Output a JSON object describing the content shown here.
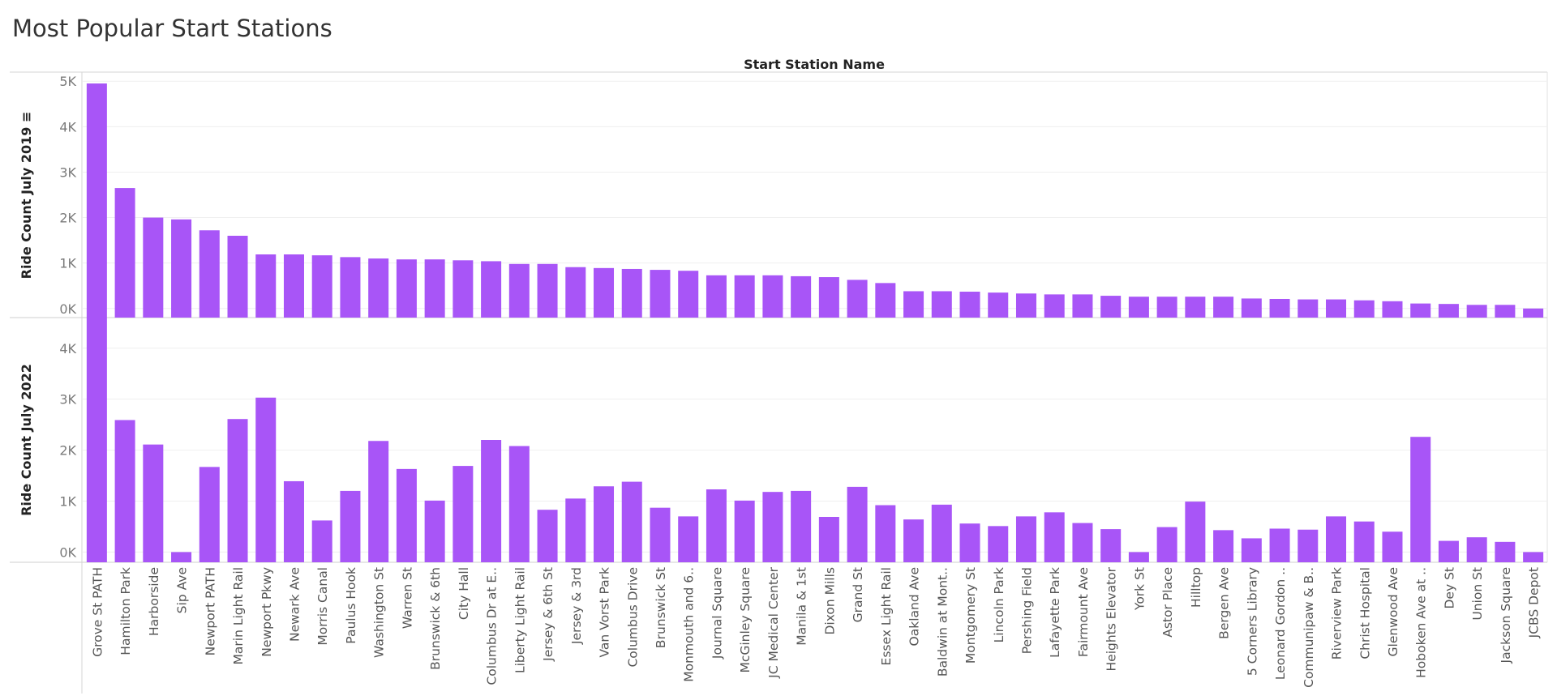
{
  "page_title": "Most Popular Start Stations",
  "chart_data": {
    "type": "bar",
    "title": "Most Popular Start Stations",
    "column_header": "Start Station Name",
    "bar_color": "#A855F7",
    "categories": [
      "Grove St PATH",
      "Hamilton Park",
      "Harborside",
      "Sip Ave",
      "Newport PATH",
      "Marin Light Rail",
      "Newport Pkwy",
      "Newark Ave",
      "Morris Canal",
      "Paulus Hook",
      "Washington St",
      "Warren St",
      "Brunswick & 6th",
      "City Hall",
      "Columbus Dr at E..",
      "Liberty Light Rail",
      "Jersey & 6th St",
      "Jersey & 3rd",
      "Van Vorst Park",
      "Columbus Drive",
      "Brunswick St",
      "Monmouth and 6..",
      "Journal Square",
      "McGinley Square",
      "JC Medical Center",
      "Manila & 1st",
      "Dixon Mills",
      "Grand St",
      "Essex Light Rail",
      "Oakland Ave",
      "Baldwin at Mont..",
      "Montgomery St",
      "Lincoln Park",
      "Pershing Field",
      "Lafayette Park",
      "Fairmount Ave",
      "Heights Elevator",
      "York St",
      "Astor Place",
      "Hilltop",
      "Bergen Ave",
      "5 Corners Library",
      "Leonard Gordon ..",
      "Communipaw & B..",
      "Riverview Park",
      "Christ Hospital",
      "Glenwood Ave",
      "Hoboken Ave at ..",
      "Dey St",
      "Union St",
      "Jackson Square",
      "JCBS Depot"
    ],
    "series": [
      {
        "name": "Ride Count July 2019 ≡",
        "ylim": [
          -200,
          5200
        ],
        "ticks": [
          0,
          1000,
          2000,
          3000,
          4000,
          5000
        ],
        "tick_labels": [
          "0K",
          "1K",
          "2K",
          "3K",
          "4K",
          "5K"
        ],
        "values": [
          4950,
          2650,
          2000,
          1960,
          1720,
          1600,
          1190,
          1190,
          1170,
          1130,
          1100,
          1080,
          1080,
          1060,
          1040,
          980,
          980,
          910,
          890,
          870,
          850,
          830,
          730,
          730,
          730,
          710,
          690,
          630,
          560,
          380,
          380,
          370,
          350,
          330,
          310,
          310,
          280,
          260,
          260,
          260,
          260,
          220,
          210,
          200,
          200,
          180,
          160,
          110,
          100,
          80,
          80,
          0
        ]
      },
      {
        "name": "Ride Count July 2022",
        "ylim": [
          -200,
          4600
        ],
        "ticks": [
          0,
          1000,
          2000,
          3000,
          4000
        ],
        "tick_labels": [
          "0K",
          "1K",
          "2K",
          "3K",
          "4K"
        ],
        "values": [
          4600,
          2590,
          2110,
          0,
          1670,
          2610,
          3030,
          1390,
          620,
          1200,
          2180,
          1630,
          1010,
          1690,
          2200,
          2080,
          830,
          1050,
          1290,
          1380,
          870,
          700,
          1230,
          1010,
          1180,
          1200,
          690,
          1280,
          920,
          640,
          930,
          560,
          510,
          700,
          780,
          570,
          450,
          0,
          490,
          990,
          430,
          270,
          460,
          440,
          700,
          600,
          400,
          2260,
          220,
          290,
          200,
          0
        ]
      }
    ]
  }
}
